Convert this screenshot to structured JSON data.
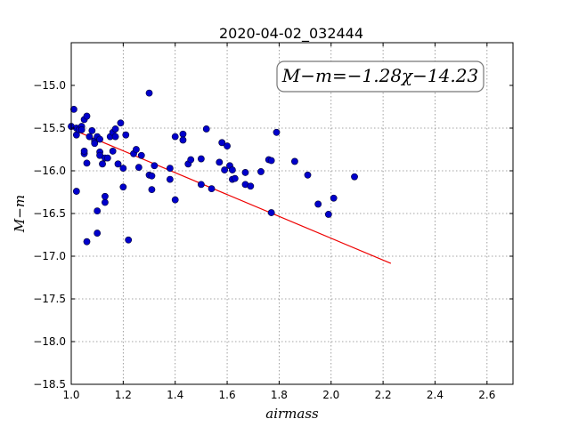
{
  "chart_data": {
    "type": "scatter",
    "title": "2020-04-02_032444",
    "xlabel": "airmass",
    "ylabel": "M−m",
    "annotation": "M−m=−1.28χ−14.23",
    "xlim": [
      1.0,
      2.7
    ],
    "ylim": [
      -18.5,
      -14.5
    ],
    "ylim_display": "inverted",
    "x_ticks": [
      "1.0",
      "1.2",
      "1.4",
      "1.6",
      "1.8",
      "2.0",
      "2.2",
      "2.4",
      "2.6"
    ],
    "y_ticks": [
      "−15.0",
      "−15.5",
      "−16.0",
      "−16.5",
      "−17.0",
      "−17.5",
      "−18.0",
      "−18.5"
    ],
    "grid": true,
    "colors": {
      "points": "#0000cc",
      "fit": "#ee0000"
    },
    "fit": {
      "slope": -1.28,
      "intercept": -14.23,
      "x_range": [
        1.02,
        2.23
      ]
    },
    "points": [
      {
        "x": 1.0,
        "y": -15.48
      },
      {
        "x": 1.01,
        "y": -15.28
      },
      {
        "x": 1.02,
        "y": -15.5
      },
      {
        "x": 1.02,
        "y": -15.58
      },
      {
        "x": 1.02,
        "y": -16.24
      },
      {
        "x": 1.03,
        "y": -15.52
      },
      {
        "x": 1.04,
        "y": -15.48
      },
      {
        "x": 1.04,
        "y": -15.52
      },
      {
        "x": 1.05,
        "y": -15.4
      },
      {
        "x": 1.05,
        "y": -15.8
      },
      {
        "x": 1.05,
        "y": -15.77
      },
      {
        "x": 1.06,
        "y": -16.83
      },
      {
        "x": 1.06,
        "y": -15.36
      },
      {
        "x": 1.06,
        "y": -15.91
      },
      {
        "x": 1.07,
        "y": -15.6
      },
      {
        "x": 1.08,
        "y": -15.53
      },
      {
        "x": 1.09,
        "y": -15.65
      },
      {
        "x": 1.09,
        "y": -15.68
      },
      {
        "x": 1.1,
        "y": -16.47
      },
      {
        "x": 1.1,
        "y": -16.73
      },
      {
        "x": 1.1,
        "y": -15.6
      },
      {
        "x": 1.11,
        "y": -15.63
      },
      {
        "x": 1.11,
        "y": -15.78
      },
      {
        "x": 1.11,
        "y": -15.82
      },
      {
        "x": 1.12,
        "y": -15.92
      },
      {
        "x": 1.13,
        "y": -16.37
      },
      {
        "x": 1.13,
        "y": -16.3
      },
      {
        "x": 1.13,
        "y": -15.85
      },
      {
        "x": 1.14,
        "y": -15.85
      },
      {
        "x": 1.15,
        "y": -15.6
      },
      {
        "x": 1.16,
        "y": -15.55
      },
      {
        "x": 1.16,
        "y": -15.77
      },
      {
        "x": 1.17,
        "y": -15.51
      },
      {
        "x": 1.17,
        "y": -15.6
      },
      {
        "x": 1.18,
        "y": -15.92
      },
      {
        "x": 1.19,
        "y": -15.44
      },
      {
        "x": 1.2,
        "y": -16.19
      },
      {
        "x": 1.2,
        "y": -15.97
      },
      {
        "x": 1.21,
        "y": -15.58
      },
      {
        "x": 1.22,
        "y": -16.81
      },
      {
        "x": 1.24,
        "y": -15.8
      },
      {
        "x": 1.25,
        "y": -15.75
      },
      {
        "x": 1.26,
        "y": -15.96
      },
      {
        "x": 1.27,
        "y": -15.82
      },
      {
        "x": 1.3,
        "y": -15.09
      },
      {
        "x": 1.3,
        "y": -16.05
      },
      {
        "x": 1.31,
        "y": -16.06
      },
      {
        "x": 1.31,
        "y": -16.22
      },
      {
        "x": 1.32,
        "y": -15.94
      },
      {
        "x": 1.38,
        "y": -15.97
      },
      {
        "x": 1.38,
        "y": -16.1
      },
      {
        "x": 1.4,
        "y": -16.34
      },
      {
        "x": 1.4,
        "y": -15.6
      },
      {
        "x": 1.43,
        "y": -15.57
      },
      {
        "x": 1.43,
        "y": -15.64
      },
      {
        "x": 1.45,
        "y": -15.92
      },
      {
        "x": 1.46,
        "y": -15.87
      },
      {
        "x": 1.5,
        "y": -16.16
      },
      {
        "x": 1.5,
        "y": -15.86
      },
      {
        "x": 1.52,
        "y": -15.51
      },
      {
        "x": 1.54,
        "y": -16.21
      },
      {
        "x": 1.57,
        "y": -15.9
      },
      {
        "x": 1.58,
        "y": -15.67
      },
      {
        "x": 1.59,
        "y": -15.99
      },
      {
        "x": 1.6,
        "y": -15.71
      },
      {
        "x": 1.61,
        "y": -15.94
      },
      {
        "x": 1.62,
        "y": -16.1
      },
      {
        "x": 1.62,
        "y": -15.99
      },
      {
        "x": 1.63,
        "y": -16.09
      },
      {
        "x": 1.67,
        "y": -16.16
      },
      {
        "x": 1.67,
        "y": -16.02
      },
      {
        "x": 1.69,
        "y": -16.18
      },
      {
        "x": 1.73,
        "y": -16.01
      },
      {
        "x": 1.76,
        "y": -15.87
      },
      {
        "x": 1.77,
        "y": -15.88
      },
      {
        "x": 1.77,
        "y": -16.49
      },
      {
        "x": 1.79,
        "y": -15.55
      },
      {
        "x": 1.86,
        "y": -15.89
      },
      {
        "x": 1.91,
        "y": -16.05
      },
      {
        "x": 1.95,
        "y": -16.39
      },
      {
        "x": 1.99,
        "y": -16.51
      },
      {
        "x": 2.01,
        "y": -16.32
      },
      {
        "x": 2.09,
        "y": -16.07
      }
    ]
  }
}
